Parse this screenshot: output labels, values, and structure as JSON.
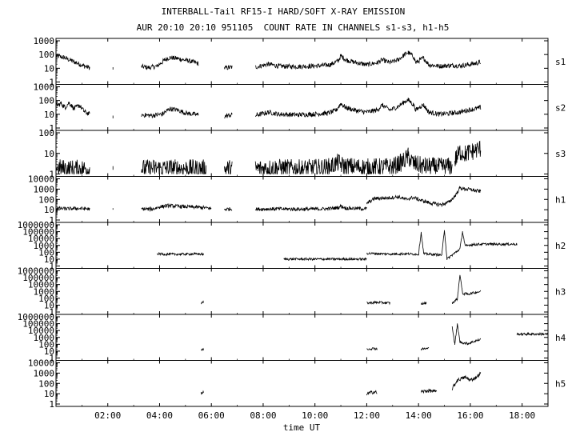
{
  "chart_data": {
    "type": "line",
    "title": "INTERBALL-Tail RF15-I HARD/SOFT X-RAY EMISSION",
    "subtitle": "AUR 20:10 20:10 951105  COUNT RATE IN CHANNELS s1-s3, h1-h5",
    "xlabel": "time UT",
    "x_range_hours": [
      0,
      19
    ],
    "x_ticks": [
      "02:00",
      "04:00",
      "06:00",
      "08:00",
      "10:00",
      "12:00",
      "14:00",
      "16:00",
      "18:00"
    ],
    "x_tick_hours": [
      2,
      4,
      6,
      8,
      10,
      12,
      14,
      16,
      18
    ],
    "y_scale": "log",
    "grid": false,
    "series": [
      {
        "name": "s1",
        "y_range": [
          1,
          1000
        ],
        "y_ticks": [
          "1",
          "10",
          "100",
          "1000"
        ],
        "segments": [
          [
            [
              0.0,
              80
            ],
            [
              0.3,
              60
            ],
            [
              0.6,
              35
            ],
            [
              0.9,
              20
            ],
            [
              1.1,
              14
            ],
            [
              1.3,
              11
            ]
          ],
          [
            [
              2.2,
              8
            ],
            [
              2.2,
              12
            ]
          ],
          [
            [
              3.3,
              13
            ],
            [
              3.6,
              11
            ],
            [
              3.9,
              14
            ],
            [
              4.2,
              40
            ],
            [
              4.4,
              60
            ],
            [
              4.7,
              50
            ],
            [
              5.1,
              35
            ],
            [
              5.5,
              22
            ]
          ],
          [
            [
              6.5,
              10
            ],
            [
              6.8,
              12
            ]
          ],
          [
            [
              7.7,
              12
            ],
            [
              8.2,
              20
            ],
            [
              8.6,
              14
            ],
            [
              9.2,
              13
            ],
            [
              9.8,
              14
            ],
            [
              10.2,
              15
            ],
            [
              10.6,
              18
            ],
            [
              10.9,
              35
            ],
            [
              11.0,
              80
            ],
            [
              11.2,
              40
            ],
            [
              11.6,
              25
            ],
            [
              12.0,
              18
            ]
          ],
          [
            [
              12.0,
              18
            ],
            [
              12.4,
              25
            ],
            [
              12.6,
              40
            ],
            [
              12.9,
              25
            ],
            [
              13.2,
              40
            ],
            [
              13.5,
              110
            ],
            [
              13.6,
              140
            ],
            [
              13.8,
              70
            ],
            [
              13.9,
              25
            ],
            [
              14.1,
              45
            ],
            [
              14.2,
              55
            ],
            [
              14.4,
              18
            ],
            [
              14.8,
              14
            ],
            [
              15.3,
              16
            ],
            [
              15.6,
              15
            ],
            [
              15.9,
              18
            ],
            [
              16.2,
              22
            ],
            [
              16.4,
              28
            ]
          ]
        ]
      },
      {
        "name": "s2",
        "y_range": [
          1,
          1000
        ],
        "y_ticks": [
          "1",
          "10",
          "100",
          "1000"
        ],
        "segments": [
          [
            [
              0.0,
              40
            ],
            [
              0.2,
              60
            ],
            [
              0.35,
              30
            ],
            [
              0.5,
              70
            ],
            [
              0.7,
              25
            ],
            [
              0.9,
              45
            ],
            [
              1.1,
              15
            ],
            [
              1.3,
              10
            ]
          ],
          [
            [
              2.2,
              5
            ],
            [
              2.2,
              8
            ]
          ],
          [
            [
              3.3,
              9
            ],
            [
              3.7,
              8
            ],
            [
              4.1,
              10
            ],
            [
              4.4,
              25
            ],
            [
              4.7,
              20
            ],
            [
              5.0,
              12
            ],
            [
              5.5,
              9
            ]
          ],
          [
            [
              6.5,
              7
            ],
            [
              6.8,
              9
            ]
          ],
          [
            [
              7.7,
              8
            ],
            [
              8.2,
              14
            ],
            [
              8.6,
              10
            ],
            [
              9.3,
              9
            ],
            [
              9.9,
              10
            ],
            [
              10.5,
              12
            ],
            [
              10.8,
              18
            ],
            [
              11.0,
              60
            ],
            [
              11.2,
              30
            ],
            [
              11.6,
              18
            ],
            [
              12.0,
              14
            ]
          ],
          [
            [
              12.0,
              14
            ],
            [
              12.4,
              20
            ],
            [
              12.6,
              45
            ],
            [
              12.9,
              20
            ],
            [
              13.2,
              35
            ],
            [
              13.5,
              90
            ],
            [
              13.6,
              110
            ],
            [
              13.8,
              50
            ],
            [
              13.9,
              20
            ],
            [
              14.1,
              40
            ],
            [
              14.2,
              45
            ],
            [
              14.4,
              14
            ],
            [
              14.8,
              10
            ],
            [
              15.3,
              12
            ],
            [
              15.6,
              14
            ],
            [
              15.9,
              20
            ],
            [
              16.2,
              25
            ],
            [
              16.4,
              30
            ]
          ]
        ]
      },
      {
        "name": "s3",
        "y_range": [
          1,
          100
        ],
        "y_ticks": [
          "1",
          "10",
          "100"
        ],
        "segments": [
          [
            [
              0.0,
              2.5
            ],
            [
              0.5,
              2.2
            ],
            [
              1.0,
              2.3
            ],
            [
              1.3,
              2.2
            ]
          ],
          [
            [
              2.2,
              1.6
            ],
            [
              2.2,
              2.4
            ]
          ],
          [
            [
              3.3,
              2.3
            ],
            [
              4.0,
              2.4
            ],
            [
              4.6,
              2.4
            ],
            [
              5.3,
              2.3
            ],
            [
              5.8,
              2.3
            ]
          ],
          [
            [
              6.5,
              2.2
            ],
            [
              6.8,
              2.3
            ]
          ],
          [
            [
              7.7,
              2.3
            ],
            [
              8.5,
              2.5
            ],
            [
              9.5,
              2.3
            ],
            [
              10.5,
              2.6
            ],
            [
              10.9,
              4.5
            ],
            [
              11.1,
              3.0
            ],
            [
              12.0,
              2.6
            ],
            [
              13.0,
              2.8
            ],
            [
              13.4,
              5.0
            ],
            [
              13.6,
              9.0
            ],
            [
              13.8,
              4.0
            ],
            [
              14.2,
              3.0
            ],
            [
              14.8,
              2.8
            ],
            [
              15.3,
              3.0
            ]
          ],
          [
            [
              15.4,
              6.0
            ],
            [
              15.6,
              15
            ],
            [
              15.8,
              12
            ],
            [
              16.1,
              16
            ],
            [
              16.4,
              22
            ]
          ]
        ]
      },
      {
        "name": "h1",
        "y_range": [
          1,
          10000
        ],
        "y_ticks": [
          "1",
          "10",
          "100",
          "1000",
          "10000"
        ],
        "segments": [
          [
            [
              0.0,
              14
            ],
            [
              0.4,
              12
            ],
            [
              0.8,
              13
            ],
            [
              1.2,
              12
            ],
            [
              1.3,
              12
            ]
          ],
          [
            [
              2.2,
              10
            ],
            [
              2.2,
              14
            ]
          ],
          [
            [
              3.3,
              12
            ],
            [
              3.7,
              11
            ],
            [
              4.0,
              18
            ],
            [
              4.3,
              25
            ],
            [
              4.8,
              20
            ],
            [
              5.3,
              18
            ],
            [
              5.8,
              15
            ],
            [
              6.0,
              13
            ]
          ],
          [
            [
              6.5,
              11
            ],
            [
              6.8,
              12
            ]
          ],
          [
            [
              7.7,
              11
            ],
            [
              8.5,
              12
            ],
            [
              9.5,
              11
            ],
            [
              10.5,
              12
            ],
            [
              10.9,
              16
            ],
            [
              11.0,
              22
            ],
            [
              11.2,
              14
            ],
            [
              12.0,
              12
            ]
          ],
          [
            [
              12.0,
              40
            ],
            [
              12.3,
              120
            ],
            [
              12.6,
              130
            ],
            [
              12.9,
              140
            ],
            [
              13.2,
              180
            ],
            [
              13.5,
              100
            ],
            [
              13.8,
              150
            ],
            [
              14.1,
              80
            ],
            [
              14.5,
              40
            ],
            [
              14.9,
              30
            ],
            [
              15.2,
              60
            ],
            [
              15.4,
              200
            ],
            [
              15.6,
              1300
            ],
            [
              15.8,
              1000
            ],
            [
              16.0,
              900
            ],
            [
              16.2,
              700
            ],
            [
              16.4,
              600
            ]
          ]
        ]
      },
      {
        "name": "h2",
        "y_range": [
          1,
          1000000
        ],
        "y_ticks": [
          "1",
          "10",
          "100",
          "1000",
          "10000",
          "100000",
          "1000000"
        ],
        "segments": [
          [
            [
              3.9,
              60
            ],
            [
              4.2,
              50
            ],
            [
              5.5,
              55
            ],
            [
              5.7,
              50
            ]
          ],
          [
            [
              8.8,
              10
            ],
            [
              10.5,
              10
            ],
            [
              12.0,
              10
            ]
          ],
          [
            [
              12.0,
              70
            ],
            [
              12.5,
              60
            ],
            [
              13.0,
              55
            ],
            [
              13.5,
              60
            ],
            [
              14.0,
              50
            ],
            [
              14.1,
              80000
            ],
            [
              14.2,
              60
            ],
            [
              14.5,
              50
            ],
            [
              14.9,
              40
            ],
            [
              15.0,
              200000
            ],
            [
              15.1,
              10
            ],
            [
              15.6,
              300
            ],
            [
              15.7,
              100000
            ],
            [
              15.8,
              800
            ],
            [
              16.0,
              1200
            ],
            [
              16.4,
              1500
            ],
            [
              17.8,
              1500
            ]
          ]
        ]
      },
      {
        "name": "h3",
        "y_range": [
          1,
          1000000
        ],
        "y_ticks": [
          "1",
          "10",
          "100",
          "1000",
          "10000",
          "100000",
          "1000000"
        ],
        "segments": [
          [
            [
              5.6,
              20
            ],
            [
              5.7,
              25
            ]
          ],
          [
            [
              12.0,
              20
            ],
            [
              12.4,
              25
            ],
            [
              12.9,
              20
            ]
          ],
          [
            [
              14.1,
              15
            ],
            [
              14.3,
              20
            ]
          ],
          [
            [
              15.3,
              20
            ],
            [
              15.5,
              80
            ],
            [
              15.6,
              300000
            ],
            [
              15.7,
              500
            ],
            [
              15.9,
              400
            ],
            [
              16.2,
              700
            ],
            [
              16.4,
              1000
            ]
          ]
        ]
      },
      {
        "name": "h4",
        "y_range": [
          1,
          1000000
        ],
        "y_ticks": [
          "1",
          "10",
          "100",
          "1000",
          "10000",
          "100000",
          "1000000"
        ],
        "segments": [
          [
            [
              5.6,
              15
            ],
            [
              5.7,
              18
            ]
          ],
          [
            [
              12.0,
              20
            ],
            [
              12.3,
              25
            ],
            [
              12.4,
              20
            ]
          ],
          [
            [
              14.1,
              20
            ],
            [
              14.4,
              25
            ]
          ],
          [
            [
              15.3,
              50000
            ],
            [
              15.4,
              100
            ],
            [
              15.5,
              80000
            ],
            [
              15.6,
              200
            ],
            [
              15.9,
              120
            ],
            [
              16.2,
              300
            ],
            [
              16.4,
              500
            ]
          ],
          [
            [
              17.8,
              3000
            ],
            [
              19.0,
              3000
            ]
          ]
        ]
      },
      {
        "name": "h5",
        "y_range": [
          1,
          10000
        ],
        "y_ticks": [
          "1",
          "10",
          "100",
          "1000",
          "10000"
        ],
        "segments": [
          [
            [
              5.6,
              10
            ],
            [
              5.7,
              12
            ]
          ],
          [
            [
              12.0,
              10
            ],
            [
              12.3,
              15
            ],
            [
              12.4,
              12
            ]
          ],
          [
            [
              14.1,
              15
            ],
            [
              14.4,
              20
            ],
            [
              14.7,
              15
            ]
          ],
          [
            [
              15.3,
              30
            ],
            [
              15.5,
              200
            ],
            [
              15.8,
              400
            ],
            [
              16.0,
              200
            ],
            [
              16.2,
              350
            ],
            [
              16.4,
              900
            ]
          ]
        ]
      }
    ]
  }
}
